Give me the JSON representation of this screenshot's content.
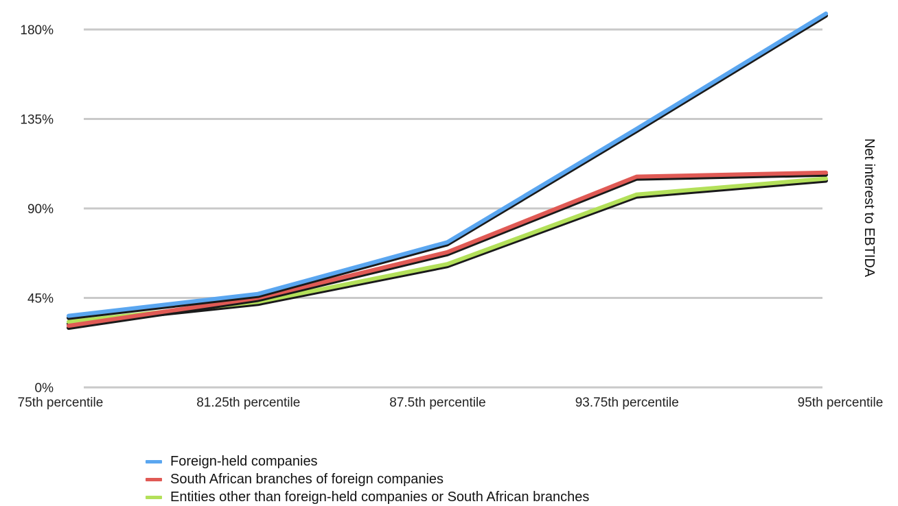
{
  "chart_data": {
    "type": "line",
    "categories": [
      "75th percentile",
      "81.25th percentile",
      "87.5th percentile",
      "93.75th percentile",
      "95th percentile"
    ],
    "series": [
      {
        "name": "Foreign-held companies",
        "color": "#5aa6f0",
        "values": [
          36,
          47,
          73,
          130,
          188
        ]
      },
      {
        "name": "South African branches of foreign companies",
        "color": "#e05a55",
        "values": [
          31,
          45,
          68,
          106,
          108
        ]
      },
      {
        "name": "Entities other than foreign-held companies or South African branches",
        "color": "#b3e05a",
        "values": [
          33,
          43,
          62,
          97,
          105
        ]
      }
    ],
    "y_ticks": [
      "0%",
      "45%",
      "90%",
      "135%",
      "180%"
    ],
    "ylabel": "Net interest to EBTIDA",
    "xlabel": "",
    "ylim": [
      0,
      180
    ],
    "grid": true,
    "legend_position": "bottom-left"
  }
}
